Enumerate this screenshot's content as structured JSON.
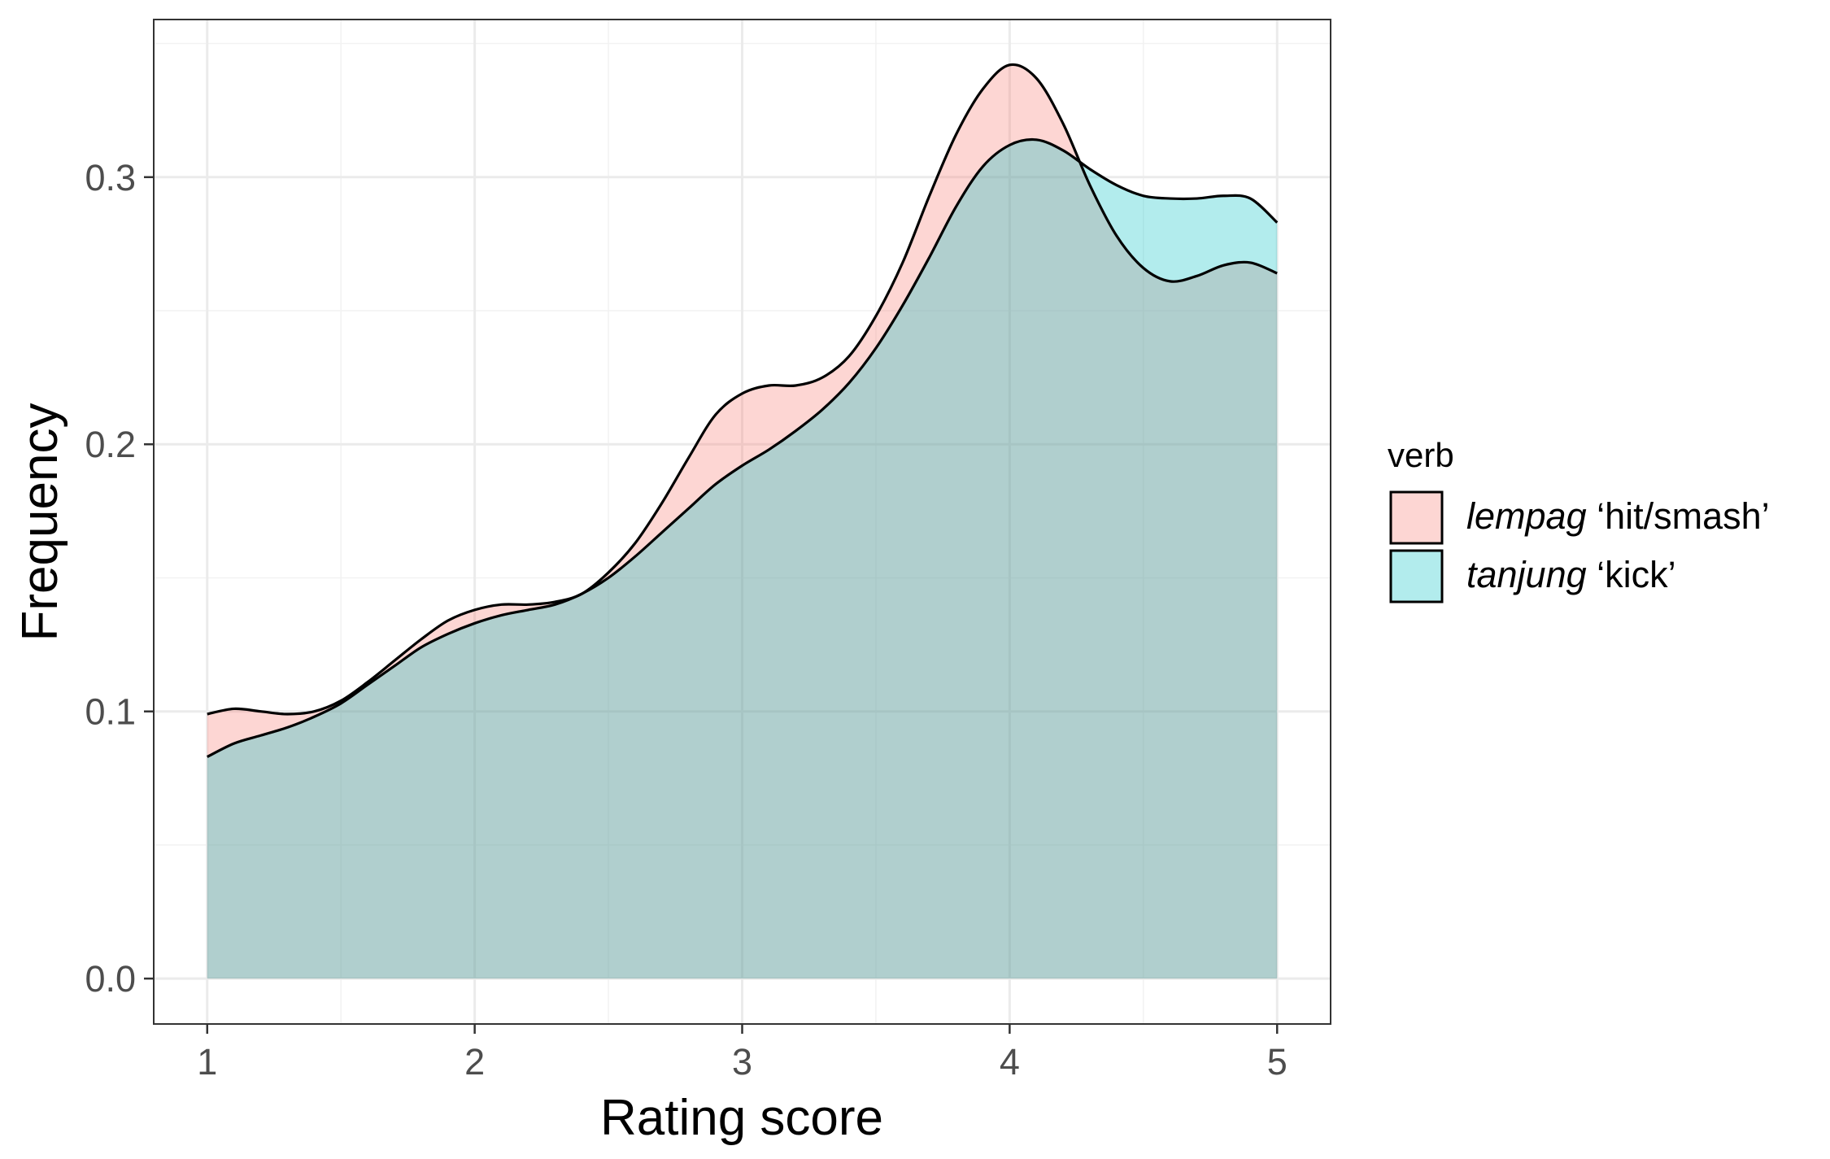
{
  "chart_data": {
    "type": "area",
    "title": "",
    "xlabel": "Rating score",
    "ylabel": "Frequency",
    "xlim": [
      0.8,
      5.2
    ],
    "ylim": [
      -0.017,
      0.359
    ],
    "x_ticks": [
      "1",
      "2",
      "3",
      "4",
      "5"
    ],
    "y_ticks": [
      "0.0",
      "0.1",
      "0.2",
      "0.3"
    ],
    "grid": true,
    "legend": {
      "title": "verb",
      "placement": "right",
      "entries": [
        {
          "italic": "lempag",
          "gloss": " ‘hit/smash’",
          "color": "#F8766D"
        },
        {
          "italic": "tanjung",
          "gloss": " ‘kick’",
          "color": "#00BFC4"
        }
      ]
    },
    "fill_opacity": 0.3,
    "series": [
      {
        "name": "lempag ‘hit/smash’",
        "color": "#F8766D",
        "x": [
          1.0,
          1.1,
          1.2,
          1.3,
          1.4,
          1.5,
          1.6,
          1.7,
          1.8,
          1.9,
          2.0,
          2.1,
          2.2,
          2.3,
          2.4,
          2.5,
          2.6,
          2.7,
          2.8,
          2.9,
          3.0,
          3.1,
          3.2,
          3.3,
          3.4,
          3.5,
          3.6,
          3.7,
          3.8,
          3.9,
          4.0,
          4.1,
          4.2,
          4.3,
          4.4,
          4.5,
          4.6,
          4.7,
          4.8,
          4.9,
          5.0
        ],
        "y": [
          0.099,
          0.101,
          0.1,
          0.099,
          0.1,
          0.104,
          0.111,
          0.119,
          0.127,
          0.134,
          0.138,
          0.14,
          0.14,
          0.141,
          0.144,
          0.152,
          0.163,
          0.178,
          0.195,
          0.211,
          0.219,
          0.222,
          0.222,
          0.225,
          0.233,
          0.248,
          0.268,
          0.293,
          0.316,
          0.333,
          0.342,
          0.337,
          0.32,
          0.297,
          0.278,
          0.266,
          0.261,
          0.263,
          0.267,
          0.268,
          0.264
        ]
      },
      {
        "name": "tanjung ‘kick’",
        "color": "#00BFC4",
        "x": [
          1.0,
          1.1,
          1.2,
          1.3,
          1.4,
          1.5,
          1.6,
          1.7,
          1.8,
          1.9,
          2.0,
          2.1,
          2.2,
          2.3,
          2.4,
          2.5,
          2.6,
          2.7,
          2.8,
          2.9,
          3.0,
          3.1,
          3.2,
          3.3,
          3.4,
          3.5,
          3.6,
          3.7,
          3.8,
          3.9,
          4.0,
          4.1,
          4.2,
          4.3,
          4.4,
          4.5,
          4.6,
          4.7,
          4.8,
          4.9,
          5.0
        ],
        "y": [
          0.083,
          0.088,
          0.091,
          0.094,
          0.098,
          0.103,
          0.11,
          0.117,
          0.124,
          0.129,
          0.133,
          0.136,
          0.138,
          0.14,
          0.144,
          0.15,
          0.158,
          0.167,
          0.176,
          0.185,
          0.192,
          0.198,
          0.205,
          0.213,
          0.223,
          0.236,
          0.252,
          0.27,
          0.289,
          0.304,
          0.312,
          0.314,
          0.31,
          0.303,
          0.297,
          0.293,
          0.292,
          0.292,
          0.293,
          0.292,
          0.283
        ]
      }
    ]
  }
}
